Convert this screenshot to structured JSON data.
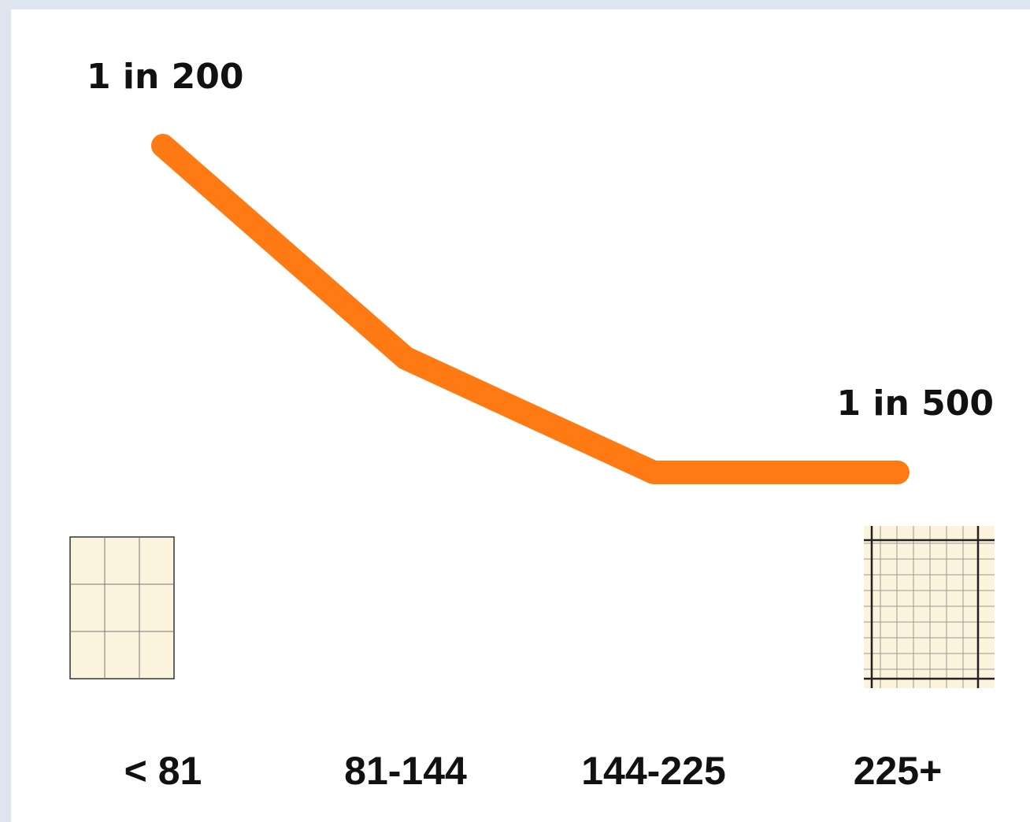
{
  "chart_data": {
    "type": "line",
    "categories": [
      "< 81",
      "81-144",
      "144-225",
      "225+"
    ],
    "series": [
      {
        "color": "#ff7a12",
        "values": [
          0.005,
          0.00305,
          0.002,
          0.002
        ],
        "value_labels": [
          "1 in 200",
          null,
          null,
          "1 in 500"
        ]
      }
    ]
  }
}
